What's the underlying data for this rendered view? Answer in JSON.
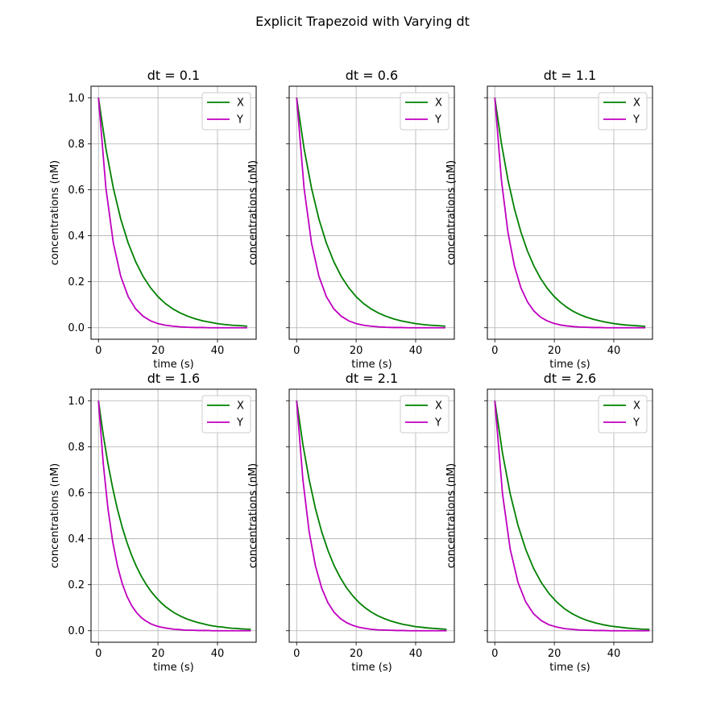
{
  "figure_title": "Explicit Trapezoid with Varying dt",
  "colors": {
    "X": "#008000",
    "Y": "#bf00bf",
    "grid": "#b0b0b0"
  },
  "chart_data": [
    {
      "type": "line",
      "title": "dt = 0.1",
      "dt": 0.1,
      "xlabel": "time (s)",
      "ylabel": "concentrations (nM)",
      "xlim": [
        -2.5,
        53
      ],
      "ylim": [
        -0.05,
        1.05
      ],
      "xticks": [
        0,
        20,
        40
      ],
      "yticks": [
        0.0,
        0.2,
        0.4,
        0.6,
        0.8,
        1.0
      ],
      "ytick_labels": [
        "0.0",
        "0.2",
        "0.4",
        "0.6",
        "0.8",
        "1.0"
      ],
      "show_ytick_labels": true,
      "grid": true,
      "legend": "upper right",
      "series": [
        {
          "name": "X",
          "color": "#008000",
          "x": [
            0,
            2.5,
            5,
            7.5,
            10,
            12.5,
            15,
            17.5,
            20,
            22.5,
            25,
            27.5,
            30,
            32.5,
            35,
            37.5,
            40,
            42.5,
            45,
            47.5,
            50
          ],
          "y": [
            1.0,
            0.779,
            0.607,
            0.472,
            0.368,
            0.287,
            0.223,
            0.174,
            0.135,
            0.105,
            0.082,
            0.064,
            0.05,
            0.039,
            0.03,
            0.024,
            0.018,
            0.014,
            0.011,
            0.009,
            0.007
          ]
        },
        {
          "name": "Y",
          "color": "#bf00bf",
          "x": [
            0,
            2.5,
            5,
            7.5,
            10,
            12.5,
            15,
            17.5,
            20,
            22.5,
            25,
            27.5,
            30,
            32.5,
            35,
            37.5,
            40,
            42.5,
            45,
            47.5,
            50
          ],
          "y": [
            1.0,
            0.607,
            0.368,
            0.223,
            0.135,
            0.082,
            0.05,
            0.03,
            0.018,
            0.011,
            0.007,
            0.004,
            0.002,
            0.001,
            0.001,
            0.0,
            0.0,
            0.0,
            0.0,
            0.0,
            0.0
          ]
        }
      ]
    },
    {
      "type": "line",
      "title": "dt = 0.6",
      "dt": 0.6,
      "xlabel": "time (s)",
      "ylabel": "concentrations (nM)",
      "xlim": [
        -2.5,
        53
      ],
      "ylim": [
        -0.05,
        1.05
      ],
      "xticks": [
        0,
        20,
        40
      ],
      "yticks": [
        0.0,
        0.2,
        0.4,
        0.6,
        0.8,
        1.0
      ],
      "ytick_labels": [
        "0.0",
        "0.2",
        "0.4",
        "0.6",
        "0.8",
        "1.0"
      ],
      "show_ytick_labels": false,
      "grid": true,
      "legend": "upper right",
      "series": [
        {
          "name": "X",
          "color": "#008000",
          "x": [
            0,
            2.5,
            5,
            7.5,
            10,
            12.5,
            15,
            17.5,
            20,
            22.5,
            25,
            27.5,
            30,
            32.5,
            35,
            37.5,
            40,
            42.5,
            45,
            47.5,
            50
          ],
          "y": [
            1.0,
            0.779,
            0.607,
            0.472,
            0.368,
            0.287,
            0.223,
            0.174,
            0.135,
            0.105,
            0.082,
            0.064,
            0.05,
            0.039,
            0.03,
            0.024,
            0.018,
            0.014,
            0.011,
            0.009,
            0.007
          ]
        },
        {
          "name": "Y",
          "color": "#bf00bf",
          "x": [
            0,
            2.5,
            5,
            7.5,
            10,
            12.5,
            15,
            17.5,
            20,
            22.5,
            25,
            27.5,
            30,
            32.5,
            35,
            37.5,
            40,
            42.5,
            45,
            47.5,
            50
          ],
          "y": [
            1.0,
            0.607,
            0.368,
            0.223,
            0.135,
            0.082,
            0.05,
            0.03,
            0.018,
            0.011,
            0.007,
            0.004,
            0.002,
            0.001,
            0.001,
            0.0,
            0.0,
            0.0,
            0.0,
            0.0,
            0.0
          ]
        }
      ]
    },
    {
      "type": "line",
      "title": "dt = 1.1",
      "dt": 1.1,
      "xlabel": "time (s)",
      "ylabel": "concentrations (nM)",
      "xlim": [
        -2.5,
        53
      ],
      "ylim": [
        -0.05,
        1.05
      ],
      "xticks": [
        0,
        20,
        40
      ],
      "yticks": [
        0.0,
        0.2,
        0.4,
        0.6,
        0.8,
        1.0
      ],
      "ytick_labels": [
        "0.0",
        "0.2",
        "0.4",
        "0.6",
        "0.8",
        "1.0"
      ],
      "show_ytick_labels": false,
      "grid": true,
      "legend": "upper right",
      "series": [
        {
          "name": "X",
          "color": "#008000",
          "x": [
            0,
            2.2,
            4.4,
            6.6,
            8.8,
            11,
            13.2,
            15.4,
            17.6,
            19.8,
            22,
            24.2,
            26.4,
            28.6,
            30.8,
            33,
            35.2,
            37.4,
            39.6,
            41.8,
            44,
            46.2,
            48.4,
            50.6
          ],
          "y": [
            1.0,
            0.803,
            0.644,
            0.517,
            0.415,
            0.333,
            0.267,
            0.214,
            0.172,
            0.138,
            0.111,
            0.089,
            0.071,
            0.057,
            0.046,
            0.037,
            0.03,
            0.024,
            0.019,
            0.015,
            0.012,
            0.01,
            0.008,
            0.006
          ]
        },
        {
          "name": "Y",
          "color": "#bf00bf",
          "x": [
            0,
            2.2,
            4.4,
            6.6,
            8.8,
            11,
            13.2,
            15.4,
            17.6,
            19.8,
            22,
            24.2,
            26.4,
            28.6,
            30.8,
            33,
            35.2,
            37.4,
            39.6,
            41.8,
            44,
            46.2,
            48.4,
            50.6
          ],
          "y": [
            1.0,
            0.645,
            0.416,
            0.268,
            0.173,
            0.112,
            0.072,
            0.046,
            0.03,
            0.019,
            0.012,
            0.008,
            0.005,
            0.003,
            0.002,
            0.001,
            0.001,
            0.0,
            0.0,
            0.0,
            0.0,
            0.0,
            0.0,
            0.0
          ]
        }
      ]
    },
    {
      "type": "line",
      "title": "dt = 1.6",
      "dt": 1.6,
      "xlabel": "time (s)",
      "ylabel": "concentrations (nM)",
      "xlim": [
        -2.5,
        53
      ],
      "ylim": [
        -0.05,
        1.05
      ],
      "xticks": [
        0,
        20,
        40
      ],
      "yticks": [
        0.0,
        0.2,
        0.4,
        0.6,
        0.8,
        1.0
      ],
      "ytick_labels": [
        "0.0",
        "0.2",
        "0.4",
        "0.6",
        "0.8",
        "1.0"
      ],
      "show_ytick_labels": true,
      "grid": true,
      "legend": "upper right",
      "series": [
        {
          "name": "X",
          "color": "#008000",
          "x": [
            0,
            1.6,
            3.2,
            4.8,
            6.4,
            8,
            9.6,
            11.2,
            12.8,
            14.4,
            16,
            17.6,
            19.2,
            20.8,
            22.4,
            24,
            25.6,
            27.2,
            28.8,
            30.4,
            32,
            33.6,
            35.2,
            36.8,
            38.4,
            40,
            41.6,
            43.2,
            44.8,
            46.4,
            48,
            49.6,
            51.2
          ],
          "y": [
            1.0,
            0.852,
            0.726,
            0.619,
            0.527,
            0.449,
            0.383,
            0.326,
            0.278,
            0.237,
            0.202,
            0.172,
            0.147,
            0.125,
            0.106,
            0.091,
            0.077,
            0.066,
            0.056,
            0.048,
            0.041,
            0.035,
            0.03,
            0.025,
            0.021,
            0.018,
            0.016,
            0.013,
            0.011,
            0.01,
            0.008,
            0.007,
            0.006
          ]
        },
        {
          "name": "Y",
          "color": "#bf00bf",
          "x": [
            0,
            1.6,
            3.2,
            4.8,
            6.4,
            8,
            9.6,
            11.2,
            12.8,
            14.4,
            16,
            17.6,
            19.2,
            20.8,
            22.4,
            24,
            25.6,
            27.2,
            28.8,
            30.4,
            32,
            33.6,
            35.2,
            36.8,
            38.4,
            40,
            41.6,
            43.2,
            44.8,
            46.4,
            48,
            49.6,
            51.2
          ],
          "y": [
            1.0,
            0.728,
            0.53,
            0.386,
            0.281,
            0.204,
            0.149,
            0.108,
            0.079,
            0.057,
            0.042,
            0.03,
            0.022,
            0.016,
            0.012,
            0.009,
            0.006,
            0.005,
            0.003,
            0.002,
            0.002,
            0.001,
            0.001,
            0.001,
            0.0,
            0.0,
            0.0,
            0.0,
            0.0,
            0.0,
            0.0,
            0.0,
            0.0
          ]
        }
      ]
    },
    {
      "type": "line",
      "title": "dt = 2.1",
      "dt": 2.1,
      "xlabel": "time (s)",
      "ylabel": "concentrations (nM)",
      "xlim": [
        -2.5,
        53
      ],
      "ylim": [
        -0.05,
        1.05
      ],
      "xticks": [
        0,
        20,
        40
      ],
      "yticks": [
        0.0,
        0.2,
        0.4,
        0.6,
        0.8,
        1.0
      ],
      "ytick_labels": [
        "0.0",
        "0.2",
        "0.4",
        "0.6",
        "0.8",
        "1.0"
      ],
      "show_ytick_labels": false,
      "grid": true,
      "legend": "upper right",
      "series": [
        {
          "name": "X",
          "color": "#008000",
          "x": [
            0,
            2.1,
            4.2,
            6.3,
            8.4,
            10.5,
            12.6,
            14.7,
            16.8,
            18.9,
            21,
            23.1,
            25.2,
            27.3,
            29.4,
            31.5,
            33.6,
            35.7,
            37.8,
            39.9,
            42,
            44.1,
            46.2,
            48.3,
            50.4
          ],
          "y": [
            1.0,
            0.81,
            0.657,
            0.532,
            0.431,
            0.35,
            0.283,
            0.23,
            0.186,
            0.151,
            0.122,
            0.099,
            0.08,
            0.065,
            0.053,
            0.043,
            0.035,
            0.028,
            0.023,
            0.018,
            0.015,
            0.012,
            0.01,
            0.008,
            0.006
          ]
        },
        {
          "name": "Y",
          "color": "#bf00bf",
          "x": [
            0,
            2.1,
            4.2,
            6.3,
            8.4,
            10.5,
            12.6,
            14.7,
            16.8,
            18.9,
            21,
            23.1,
            25.2,
            27.3,
            29.4,
            31.5,
            33.6,
            35.7,
            37.8,
            39.9,
            42,
            44.1,
            46.2,
            48.3,
            50.4
          ],
          "y": [
            1.0,
            0.657,
            0.431,
            0.283,
            0.186,
            0.122,
            0.08,
            0.053,
            0.035,
            0.023,
            0.015,
            0.01,
            0.006,
            0.004,
            0.003,
            0.002,
            0.001,
            0.001,
            0.0,
            0.0,
            0.0,
            0.0,
            0.0,
            0.0,
            0.0
          ]
        }
      ]
    },
    {
      "type": "line",
      "title": "dt = 2.6",
      "dt": 2.6,
      "xlabel": "time (s)",
      "ylabel": "concentrations (nM)",
      "xlim": [
        -2.5,
        53
      ],
      "ylim": [
        -0.05,
        1.05
      ],
      "xticks": [
        0,
        20,
        40
      ],
      "yticks": [
        0.0,
        0.2,
        0.4,
        0.6,
        0.8,
        1.0
      ],
      "ytick_labels": [
        "0.0",
        "0.2",
        "0.4",
        "0.6",
        "0.8",
        "1.0"
      ],
      "show_ytick_labels": false,
      "grid": true,
      "legend": "upper right",
      "series": [
        {
          "name": "X",
          "color": "#008000",
          "x": [
            0,
            2.6,
            5.2,
            7.8,
            10.4,
            13,
            15.6,
            18.2,
            20.8,
            23.4,
            26,
            28.6,
            31.2,
            33.8,
            36.4,
            39,
            41.6,
            44.2,
            46.8,
            49.4,
            52
          ],
          "y": [
            1.0,
            0.771,
            0.594,
            0.458,
            0.353,
            0.272,
            0.21,
            0.162,
            0.125,
            0.096,
            0.074,
            0.057,
            0.044,
            0.034,
            0.026,
            0.02,
            0.016,
            0.012,
            0.009,
            0.007,
            0.006
          ]
        },
        {
          "name": "Y",
          "color": "#bf00bf",
          "x": [
            0,
            2.6,
            5.2,
            7.8,
            10.4,
            13,
            15.6,
            18.2,
            20.8,
            23.4,
            26,
            28.6,
            31.2,
            33.8,
            36.4,
            39,
            41.6,
            44.2,
            46.8,
            49.4,
            52
          ],
          "y": [
            1.0,
            0.594,
            0.353,
            0.21,
            0.125,
            0.074,
            0.044,
            0.026,
            0.016,
            0.009,
            0.006,
            0.003,
            0.002,
            0.001,
            0.001,
            0.0,
            0.0,
            0.0,
            0.0,
            0.0,
            0.0
          ]
        }
      ]
    }
  ]
}
